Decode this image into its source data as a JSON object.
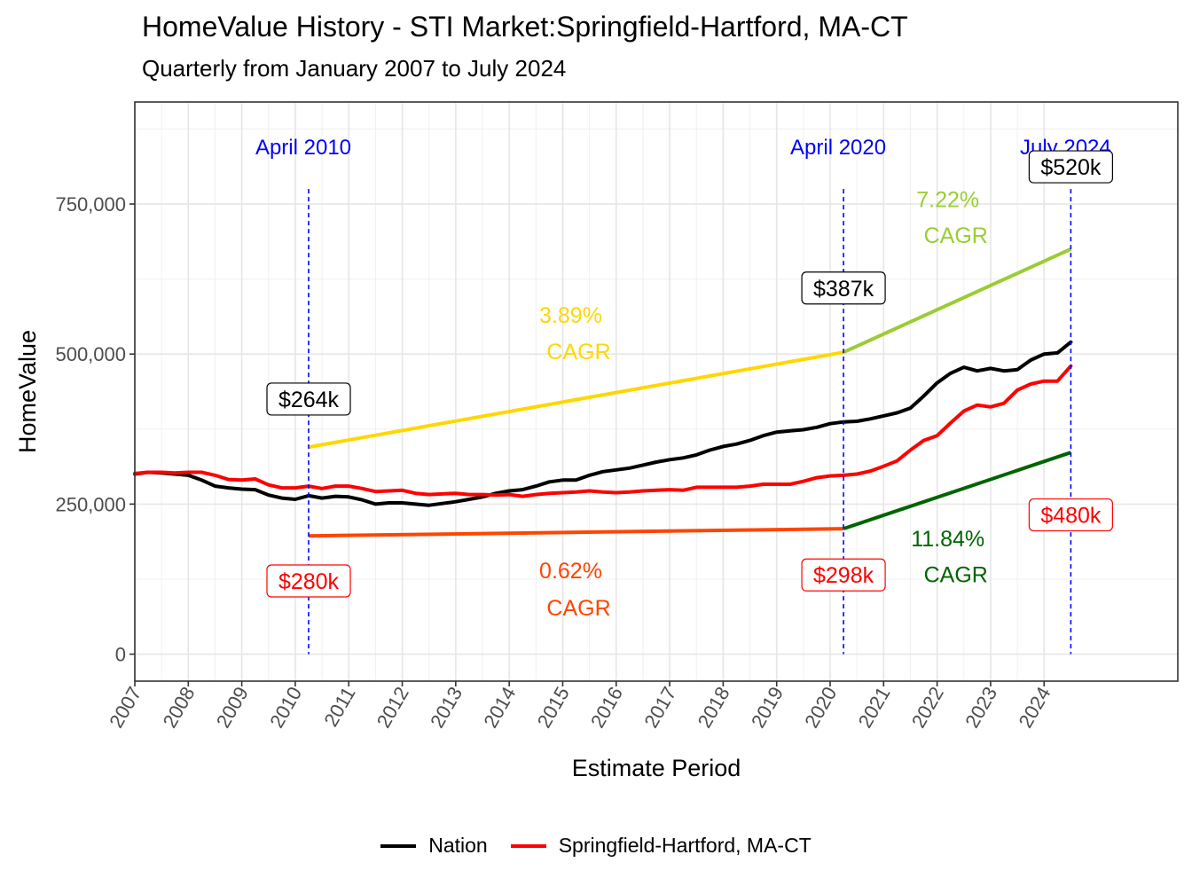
{
  "chart_data": {
    "type": "line",
    "title": "HomeValue History - STI Market:Springfield-Hartford, MA-CT",
    "subtitle": "Quarterly from January 2007 to July 2024",
    "xlabel": "Estimate Period",
    "ylabel": "HomeValue",
    "xlim": [
      2007,
      2026.5
    ],
    "ylim": [
      -45000,
      920000
    ],
    "x_ticks": [
      2007,
      2008,
      2009,
      2010,
      2011,
      2012,
      2013,
      2014,
      2015,
      2016,
      2017,
      2018,
      2019,
      2020,
      2021,
      2022,
      2023,
      2024
    ],
    "x_tick_labels": [
      "2007",
      "2008",
      "2009",
      "2010",
      "2011",
      "2012",
      "2013",
      "2014",
      "2015",
      "2016",
      "2017",
      "2018",
      "2019",
      "2020",
      "2021",
      "2022",
      "2023",
      "2024"
    ],
    "y_ticks": [
      0,
      250000,
      500000,
      750000
    ],
    "y_tick_labels": [
      "0",
      "250,000",
      "500,000",
      "750,000"
    ],
    "legend_position": "bottom",
    "series": [
      {
        "name": "Nation",
        "color": "#000000",
        "x": [
          2007.0,
          2007.25,
          2007.5,
          2007.75,
          2008.0,
          2008.25,
          2008.5,
          2008.75,
          2009.0,
          2009.25,
          2009.5,
          2009.75,
          2010.0,
          2010.25,
          2010.5,
          2010.75,
          2011.0,
          2011.25,
          2011.5,
          2011.75,
          2012.0,
          2012.25,
          2012.5,
          2012.75,
          2013.0,
          2013.25,
          2013.5,
          2013.75,
          2014.0,
          2014.25,
          2014.5,
          2014.75,
          2015.0,
          2015.25,
          2015.5,
          2015.75,
          2016.0,
          2016.25,
          2016.5,
          2016.75,
          2017.0,
          2017.25,
          2017.5,
          2017.75,
          2018.0,
          2018.25,
          2018.5,
          2018.75,
          2019.0,
          2019.25,
          2019.5,
          2019.75,
          2020.0,
          2020.25,
          2020.5,
          2020.75,
          2021.0,
          2021.25,
          2021.5,
          2021.75,
          2022.0,
          2022.25,
          2022.5,
          2022.75,
          2023.0,
          2023.25,
          2023.5,
          2023.75,
          2024.0,
          2024.25,
          2024.5
        ],
        "values": [
          300000,
          303000,
          302000,
          300000,
          298000,
          290000,
          280000,
          277000,
          275000,
          274000,
          265000,
          260000,
          258000,
          264000,
          260000,
          263000,
          262000,
          257000,
          250000,
          252000,
          252000,
          250000,
          248000,
          251000,
          254000,
          258000,
          262000,
          268000,
          272000,
          274000,
          280000,
          287000,
          290000,
          290000,
          298000,
          304000,
          307000,
          310000,
          315000,
          320000,
          324000,
          327000,
          332000,
          340000,
          346000,
          350000,
          356000,
          364000,
          370000,
          372000,
          374000,
          378000,
          384000,
          387000,
          388000,
          392000,
          397000,
          402000,
          410000,
          430000,
          452000,
          468000,
          478000,
          472000,
          476000,
          472000,
          474000,
          490000,
          500000,
          502000,
          520000
        ]
      },
      {
        "name": "Springfield-Hartford, MA-CT",
        "color": "#ff0000",
        "x": [
          2007.0,
          2007.25,
          2007.5,
          2007.75,
          2008.0,
          2008.25,
          2008.5,
          2008.75,
          2009.0,
          2009.25,
          2009.5,
          2009.75,
          2010.0,
          2010.25,
          2010.5,
          2010.75,
          2011.0,
          2011.25,
          2011.5,
          2011.75,
          2012.0,
          2012.25,
          2012.5,
          2012.75,
          2013.0,
          2013.25,
          2013.5,
          2013.75,
          2014.0,
          2014.25,
          2014.5,
          2014.75,
          2015.0,
          2015.25,
          2015.5,
          2015.75,
          2016.0,
          2016.25,
          2016.5,
          2016.75,
          2017.0,
          2017.25,
          2017.5,
          2017.75,
          2018.0,
          2018.25,
          2018.5,
          2018.75,
          2019.0,
          2019.25,
          2019.5,
          2019.75,
          2020.0,
          2020.25,
          2020.5,
          2020.75,
          2021.0,
          2021.25,
          2021.5,
          2021.75,
          2022.0,
          2022.25,
          2022.5,
          2022.75,
          2023.0,
          2023.25,
          2023.5,
          2023.75,
          2024.0,
          2024.25,
          2024.5
        ],
        "values": [
          301000,
          303000,
          303000,
          302000,
          303000,
          303000,
          298000,
          291000,
          290000,
          292000,
          282000,
          277000,
          277000,
          280000,
          276000,
          280000,
          280000,
          276000,
          271000,
          272000,
          273000,
          268000,
          266000,
          267000,
          268000,
          266000,
          266000,
          265000,
          266000,
          263000,
          266000,
          268000,
          269000,
          270000,
          272000,
          270000,
          269000,
          270000,
          272000,
          273000,
          274000,
          273000,
          278000,
          278000,
          278000,
          278000,
          280000,
          283000,
          283000,
          283000,
          288000,
          294000,
          297000,
          298000,
          300000,
          305000,
          313000,
          322000,
          340000,
          356000,
          364000,
          385000,
          405000,
          415000,
          412000,
          418000,
          440000,
          450000,
          455000,
          455000,
          480000
        ]
      }
    ],
    "trend_lines": [
      {
        "name": "nation-trend-2010-2020",
        "color": "#ffd700",
        "x": [
          2010.25,
          2020.25
        ],
        "y": [
          345000,
          503000
        ]
      },
      {
        "name": "nation-trend-2020-2024",
        "color": "#9acd32",
        "x": [
          2020.25,
          2024.5
        ],
        "y": [
          503000,
          675000
        ]
      },
      {
        "name": "market-trend-2010-2020",
        "color": "#ff4500",
        "x": [
          2010.25,
          2020.25
        ],
        "y": [
          197000,
          209000
        ]
      },
      {
        "name": "market-trend-2020-2024",
        "color": "#006400",
        "x": [
          2020.25,
          2024.5
        ],
        "y": [
          209000,
          336000
        ]
      }
    ],
    "vlines": [
      {
        "x": 2010.25,
        "label": "April 2010"
      },
      {
        "x": 2020.25,
        "label": "April 2020"
      },
      {
        "x": 2024.5,
        "label": "July 2024"
      }
    ],
    "vline_color": "#0000ff",
    "value_labels": [
      {
        "x": 2010.25,
        "y": 425000,
        "text": "$264k",
        "color": "#000000"
      },
      {
        "x": 2020.25,
        "y": 610000,
        "text": "$387k",
        "color": "#000000"
      },
      {
        "x": 2024.5,
        "y": 812000,
        "text": "$520k",
        "color": "#000000"
      },
      {
        "x": 2010.25,
        "y": 122000,
        "text": "$280k",
        "color": "#ff0000"
      },
      {
        "x": 2020.25,
        "y": 132000,
        "text": "$298k",
        "color": "#ff0000"
      },
      {
        "x": 2024.5,
        "y": 232000,
        "text": "$480k",
        "color": "#ff0000"
      }
    ],
    "cagr_labels": [
      {
        "x": 2015.15,
        "y": 565000,
        "text": "3.89%",
        "color": "#ffd700"
      },
      {
        "x": 2015.3,
        "y": 505000,
        "text": "CAGR",
        "color": "#ffd700"
      },
      {
        "x": 2022.2,
        "y": 758000,
        "text": "7.22%",
        "color": "#9acd32"
      },
      {
        "x": 2022.35,
        "y": 698000,
        "text": "CAGR",
        "color": "#9acd32"
      },
      {
        "x": 2015.15,
        "y": 140000,
        "text": "0.62%",
        "color": "#ff4500"
      },
      {
        "x": 2015.3,
        "y": 78000,
        "text": "CAGR",
        "color": "#ff4500"
      },
      {
        "x": 2022.2,
        "y": 193000,
        "text": "11.84%",
        "color": "#006400"
      },
      {
        "x": 2022.35,
        "y": 133000,
        "text": "CAGR",
        "color": "#006400"
      }
    ]
  }
}
